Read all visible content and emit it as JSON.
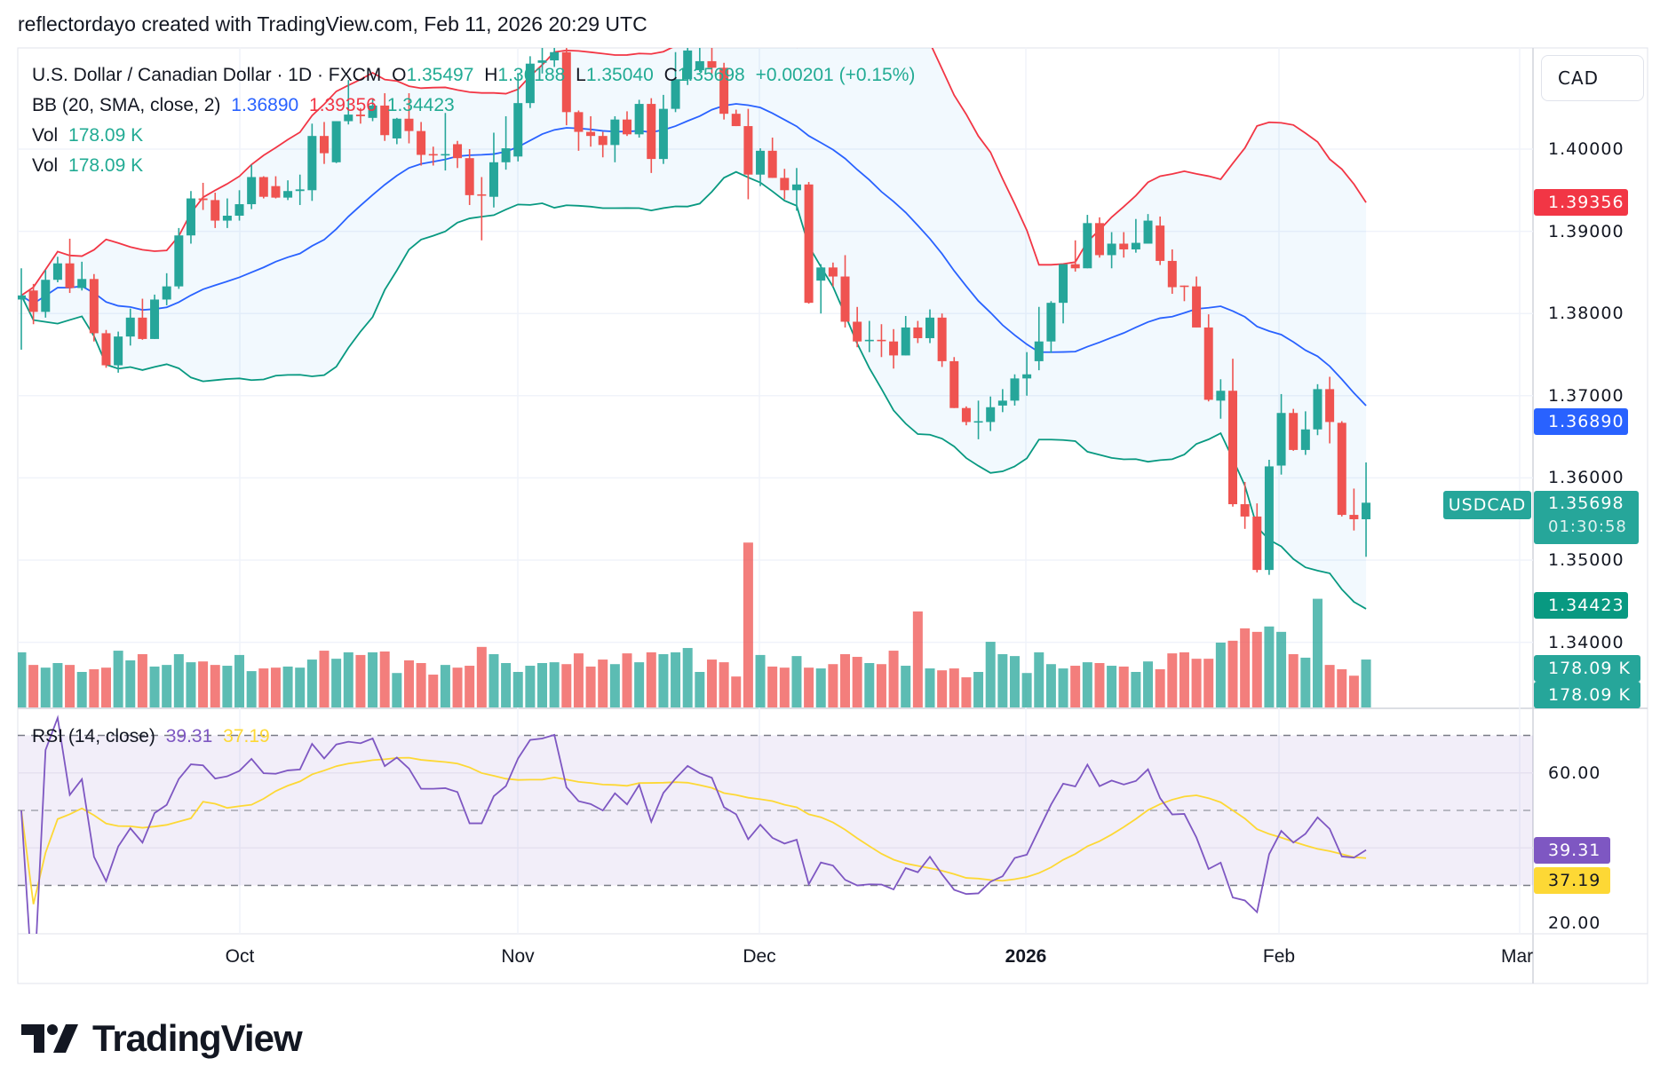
{
  "header": {
    "attribution": "reflectordayo created with TradingView.com, Feb 11, 2026 20:29 UTC"
  },
  "legend": {
    "symbol": "U.S. Dollar / Canadian Dollar · 1D · FXCM",
    "o_label": "O",
    "open": "1.35497",
    "h_label": "H",
    "high": "1.36188",
    "l_label": "L",
    "low": "1.35040",
    "c_label": "C",
    "close": "1.35698",
    "change": "+0.00201 (+0.15%)",
    "bb_label": "BB (20, SMA, close, 2)",
    "bb_basis": "1.36890",
    "bb_upper": "1.39356",
    "bb_lower": "1.34423",
    "vol_label": "Vol",
    "vol_value": "178.09 K",
    "vol2_label": "Vol",
    "vol2_value": "178.09 K",
    "rsi_label": "RSI (14, close)",
    "rsi_value": "39.31",
    "rsi_ma_value": "37.19"
  },
  "price_axis": {
    "currency": "CAD",
    "ticks": [
      "1.40000",
      "1.39000",
      "1.38000",
      "1.37000",
      "1.36000",
      "1.35000",
      "1.34000"
    ]
  },
  "badges": {
    "bb_upper": "1.39356",
    "bb_basis": "1.36890",
    "symbol_tag": "USDCAD",
    "last_price": "1.35698",
    "countdown": "01:30:58",
    "bb_lower": "1.34423",
    "vol1": "178.09 K",
    "vol2": "178.09 K",
    "rsi": "39.31",
    "rsi_ma": "37.19"
  },
  "rsi_axis": {
    "ticks": [
      "60.00",
      "20.00"
    ]
  },
  "time_axis": {
    "labels": [
      "Oct",
      "Nov",
      "Dec",
      "2026",
      "Feb",
      "Mar"
    ]
  },
  "brand": {
    "logo_text": "TradingView"
  },
  "colors": {
    "up": "#26a69a",
    "down": "#ef5350",
    "bb_basis": "#2962ff",
    "bb_upper": "#f23645",
    "bb_lower": "#089981",
    "rsi": "#7e57c2",
    "rsi_ma": "#fdd835"
  },
  "chart_data": {
    "type": "candlestick",
    "symbol": "USDCAD",
    "interval": "1D",
    "ylim": [
      1.3335,
      1.414
    ],
    "indicators": {
      "bollinger": {
        "length": 20,
        "ma": "SMA",
        "source": "close",
        "mult": 2
      },
      "rsi": {
        "length": 14,
        "source": "close",
        "ma_length": 14,
        "levels": [
          70,
          50,
          30
        ],
        "ylim": [
          16,
          80
        ]
      }
    },
    "ohlc": [
      [
        1.3817,
        1.3855,
        1.3756,
        1.3822
      ],
      [
        1.3828,
        1.3836,
        1.3787,
        1.3802
      ],
      [
        1.3802,
        1.3853,
        1.3795,
        1.3841
      ],
      [
        1.3841,
        1.3869,
        1.3838,
        1.3861
      ],
      [
        1.3861,
        1.3891,
        1.3825,
        1.3831
      ],
      [
        1.3831,
        1.3863,
        1.3828,
        1.3842
      ],
      [
        1.3842,
        1.3848,
        1.3766,
        1.3776
      ],
      [
        1.3776,
        1.378,
        1.3734,
        1.3737
      ],
      [
        1.3737,
        1.3778,
        1.3728,
        1.3772
      ],
      [
        1.3772,
        1.3806,
        1.3761,
        1.3795
      ],
      [
        1.3795,
        1.3818,
        1.3768,
        1.3769
      ],
      [
        1.3769,
        1.3823,
        1.3769,
        1.3817
      ],
      [
        1.3817,
        1.3849,
        1.381,
        1.3833
      ],
      [
        1.3833,
        1.3904,
        1.383,
        1.3895
      ],
      [
        1.3895,
        1.3949,
        1.3885,
        1.394
      ],
      [
        1.394,
        1.3959,
        1.3926,
        1.3938
      ],
      [
        1.3938,
        1.3947,
        1.3904,
        1.3913
      ],
      [
        1.3913,
        1.394,
        1.3904,
        1.3919
      ],
      [
        1.3919,
        1.395,
        1.3913,
        1.3933
      ],
      [
        1.3933,
        1.3981,
        1.3927,
        1.3966
      ],
      [
        1.3966,
        1.3967,
        1.394,
        1.3942
      ],
      [
        1.3955,
        1.3967,
        1.394,
        1.3941
      ],
      [
        1.3941,
        1.3962,
        1.3938,
        1.3949
      ],
      [
        1.3949,
        1.3969,
        1.3932,
        1.3951
      ],
      [
        1.395,
        1.4031,
        1.3937,
        1.4016
      ],
      [
        1.4016,
        1.4033,
        1.3982,
        1.3995
      ],
      [
        1.3984,
        1.4034,
        1.3983,
        1.4034
      ],
      [
        1.4034,
        1.4084,
        1.403,
        1.4042
      ],
      [
        1.4042,
        1.405,
        1.4031,
        1.404
      ],
      [
        1.4038,
        1.4062,
        1.4034,
        1.4053
      ],
      [
        1.4053,
        1.4068,
        1.401,
        1.4017
      ],
      [
        1.4013,
        1.4038,
        1.4006,
        1.4037
      ],
      [
        1.4037,
        1.4068,
        1.4007,
        1.4022
      ],
      [
        1.4022,
        1.4033,
        1.398,
        1.3993
      ],
      [
        1.3994,
        1.4003,
        1.398,
        1.3993
      ],
      [
        1.3993,
        1.4044,
        1.3974,
        1.3994
      ],
      [
        1.4006,
        1.401,
        1.3977,
        1.3989
      ],
      [
        1.3989,
        1.4,
        1.3932,
        1.3944
      ],
      [
        1.3945,
        1.3966,
        1.3889,
        1.3944
      ],
      [
        1.3942,
        1.402,
        1.3929,
        1.3984
      ],
      [
        1.3984,
        1.404,
        1.3975,
        1.4001
      ],
      [
        1.3991,
        1.4092,
        1.3985,
        1.4056
      ],
      [
        1.4056,
        1.4113,
        1.405,
        1.4104
      ],
      [
        1.4105,
        1.413,
        1.4092,
        1.4108
      ],
      [
        1.4108,
        1.413,
        1.41,
        1.4118
      ],
      [
        1.4118,
        1.4123,
        1.4029,
        1.4045
      ],
      [
        1.4045,
        1.4047,
        1.3998,
        1.4021
      ],
      [
        1.4021,
        1.404,
        1.4003,
        1.4016
      ],
      [
        1.4016,
        1.4021,
        1.399,
        1.4005
      ],
      [
        1.4005,
        1.404,
        1.3984,
        1.4036
      ],
      [
        1.4036,
        1.4046,
        1.4016,
        1.4018
      ],
      [
        1.4018,
        1.406,
        1.4014,
        1.4055
      ],
      [
        1.4055,
        1.4062,
        1.3971,
        1.3988
      ],
      [
        1.3988,
        1.4066,
        1.3982,
        1.4049
      ],
      [
        1.4049,
        1.4118,
        1.4045,
        1.4085
      ],
      [
        1.4085,
        1.414,
        1.4078,
        1.412
      ],
      [
        1.4096,
        1.4124,
        1.4094,
        1.4107
      ],
      [
        1.4107,
        1.4124,
        1.4092,
        1.4099
      ],
      [
        1.4099,
        1.4105,
        1.4036,
        1.4043
      ],
      [
        1.4043,
        1.4048,
        1.4028,
        1.4028
      ],
      [
        1.4028,
        1.4049,
        1.3939,
        1.3969
      ],
      [
        1.3969,
        1.4001,
        1.3955,
        1.3998
      ],
      [
        1.3998,
        1.4014,
        1.3965,
        1.3965
      ],
      [
        1.3965,
        1.3976,
        1.3939,
        1.395
      ],
      [
        1.395,
        1.3977,
        1.3925,
        1.3957
      ],
      [
        1.3957,
        1.396,
        1.3812,
        1.3813
      ],
      [
        1.384,
        1.386,
        1.38,
        1.3856
      ],
      [
        1.3856,
        1.3862,
        1.3833,
        1.3845
      ],
      [
        1.3845,
        1.3871,
        1.3783,
        1.379
      ],
      [
        1.379,
        1.3808,
        1.3759,
        1.3766
      ],
      [
        1.3767,
        1.3791,
        1.3753,
        1.3768
      ],
      [
        1.3768,
        1.3787,
        1.3747,
        1.3767
      ],
      [
        1.3766,
        1.3781,
        1.3733,
        1.3749
      ],
      [
        1.3749,
        1.3797,
        1.3749,
        1.3783
      ],
      [
        1.3783,
        1.3791,
        1.3764,
        1.377
      ],
      [
        1.377,
        1.3805,
        1.3764,
        1.3795
      ],
      [
        1.3795,
        1.38,
        1.3735,
        1.3742
      ],
      [
        1.3742,
        1.3747,
        1.3685,
        1.3685
      ],
      [
        1.3685,
        1.3687,
        1.3664,
        1.3668
      ],
      [
        1.3668,
        1.3694,
        1.3647,
        1.3669
      ],
      [
        1.3668,
        1.3699,
        1.3657,
        1.3686
      ],
      [
        1.3688,
        1.3708,
        1.368,
        1.3694
      ],
      [
        1.3694,
        1.3726,
        1.3688,
        1.3721
      ],
      [
        1.3721,
        1.3753,
        1.37,
        1.3726
      ],
      [
        1.3742,
        1.3808,
        1.3731,
        1.3766
      ],
      [
        1.3766,
        1.3815,
        1.3752,
        1.3813
      ],
      [
        1.3813,
        1.386,
        1.3788,
        1.386
      ],
      [
        1.386,
        1.3889,
        1.3851,
        1.3855
      ],
      [
        1.3855,
        1.392,
        1.3855,
        1.391
      ],
      [
        1.391,
        1.3917,
        1.3868,
        1.3871
      ],
      [
        1.3871,
        1.3899,
        1.3855,
        1.3885
      ],
      [
        1.3885,
        1.3899,
        1.3868,
        1.3878
      ],
      [
        1.3878,
        1.3915,
        1.3874,
        1.3886
      ],
      [
        1.3885,
        1.3921,
        1.3885,
        1.3913
      ],
      [
        1.3907,
        1.3918,
        1.3859,
        1.3864
      ],
      [
        1.3864,
        1.3878,
        1.3824,
        1.3832
      ],
      [
        1.3834,
        1.3834,
        1.3815,
        1.3833
      ],
      [
        1.3833,
        1.3845,
        1.3783,
        1.3783
      ],
      [
        1.3783,
        1.3799,
        1.3693,
        1.3695
      ],
      [
        1.3694,
        1.372,
        1.3672,
        1.3706
      ],
      [
        1.3706,
        1.3745,
        1.3565,
        1.3568
      ],
      [
        1.3568,
        1.3595,
        1.3538,
        1.3553
      ],
      [
        1.3553,
        1.3569,
        1.3485,
        1.3488
      ],
      [
        1.3488,
        1.3622,
        1.3482,
        1.3614
      ],
      [
        1.3615,
        1.3702,
        1.3604,
        1.3679
      ],
      [
        1.3679,
        1.3684,
        1.3633,
        1.3634
      ],
      [
        1.3634,
        1.3681,
        1.3628,
        1.3659
      ],
      [
        1.3659,
        1.3714,
        1.3652,
        1.3708
      ],
      [
        1.3708,
        1.3723,
        1.3642,
        1.3668
      ],
      [
        1.3667,
        1.3669,
        1.3553,
        1.3555
      ],
      [
        1.3555,
        1.3587,
        1.3536,
        1.35497
      ],
      [
        1.35497,
        1.36188,
        1.3504,
        1.35698
      ]
    ],
    "volume_k": [
      205,
      158,
      148,
      165,
      158,
      132,
      142,
      148,
      211,
      175,
      198,
      152,
      158,
      198,
      168,
      171,
      158,
      155,
      195,
      135,
      145,
      148,
      152,
      148,
      178,
      211,
      181,
      205,
      195,
      205,
      208,
      128,
      175,
      165,
      122,
      158,
      148,
      155,
      225,
      198,
      165,
      132,
      155,
      165,
      168,
      161,
      201,
      152,
      178,
      161,
      201,
      168,
      205,
      198,
      205,
      221,
      132,
      178,
      168,
      115,
      613,
      195,
      152,
      148,
      191,
      148,
      145,
      161,
      198,
      188,
      165,
      161,
      211,
      155,
      357,
      145,
      138,
      145,
      112,
      132,
      244,
      198,
      191,
      128,
      205,
      161,
      145,
      155,
      168,
      165,
      155,
      152,
      132,
      171,
      142,
      201,
      205,
      181,
      181,
      241,
      248,
      294,
      281,
      301,
      281,
      198,
      185,
      404,
      158,
      142,
      118,
      178.09
    ]
  }
}
